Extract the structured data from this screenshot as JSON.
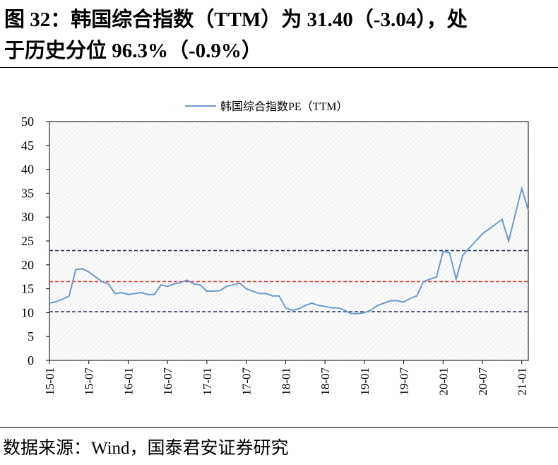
{
  "chart_data": {
    "type": "line",
    "title": [
      "图 32：韩国综合指数（TTM）为 31.40（-3.04），处",
      "于历史分位 96.3%（-0.9%）"
    ],
    "source": "数据来源：Wind，国泰君安证券研究",
    "x": [
      "15-01",
      "15-02",
      "15-03",
      "15-04",
      "15-05",
      "15-06",
      "15-07",
      "15-08",
      "15-09",
      "15-10",
      "15-11",
      "15-12",
      "16-01",
      "16-02",
      "16-03",
      "16-04",
      "16-05",
      "16-06",
      "16-07",
      "16-08",
      "16-09",
      "16-10",
      "16-11",
      "16-12",
      "17-01",
      "17-02",
      "17-03",
      "17-04",
      "17-05",
      "17-06",
      "17-07",
      "17-08",
      "17-09",
      "17-10",
      "17-11",
      "17-12",
      "18-01",
      "18-02",
      "18-03",
      "18-04",
      "18-05",
      "18-06",
      "18-07",
      "18-08",
      "18-09",
      "18-10",
      "18-11",
      "18-12",
      "19-01",
      "19-02",
      "19-03",
      "19-04",
      "19-05",
      "19-06",
      "19-07",
      "19-08",
      "19-09",
      "19-10",
      "19-11",
      "19-12",
      "20-01",
      "20-02",
      "20-03",
      "20-04",
      "20-05",
      "20-06",
      "20-07",
      "20-08",
      "20-09",
      "20-10",
      "20-11",
      "20-12",
      "21-01",
      "21-02"
    ],
    "xticks": [
      "15-01",
      "15-07",
      "16-01",
      "16-07",
      "17-01",
      "17-07",
      "18-01",
      "18-07",
      "19-01",
      "19-07",
      "20-01",
      "20-07",
      "21-01"
    ],
    "series": [
      {
        "name": "韩国综合指数PE（TTM）",
        "color": "#6b9bd1",
        "values": [
          12,
          12.3,
          12.8,
          13.5,
          19,
          19.2,
          18.5,
          17.5,
          16.5,
          16,
          14,
          14.2,
          13.8,
          14,
          14.2,
          13.8,
          13.8,
          15.8,
          15.5,
          16,
          16.3,
          16.8,
          16,
          15.8,
          14.5,
          14.5,
          14.6,
          15.5,
          15.8,
          16.2,
          15,
          14.5,
          14,
          14,
          13.5,
          13.5,
          11,
          10.5,
          10.8,
          11.5,
          12,
          11.5,
          11.3,
          11,
          11,
          10.5,
          9.8,
          9.8,
          10,
          10.5,
          11.5,
          12,
          12.5,
          12.5,
          12.2,
          13,
          13.5,
          16.5,
          17,
          17.5,
          22.8,
          22.5,
          17,
          22,
          23.5,
          25,
          26.5,
          27.5,
          28.5,
          29.5,
          25,
          30.5,
          36,
          31.4
        ]
      }
    ],
    "reference_lines": [
      {
        "value": 23,
        "color": "#2f3e5e"
      },
      {
        "value": 16.5,
        "color": "#e03a2f"
      },
      {
        "value": 10.2,
        "color": "#2f3e5e"
      }
    ],
    "ylim": [
      0,
      50
    ],
    "yticks": [
      0,
      5,
      10,
      15,
      20,
      25,
      30,
      35,
      40,
      45,
      50
    ],
    "legend": "top"
  }
}
